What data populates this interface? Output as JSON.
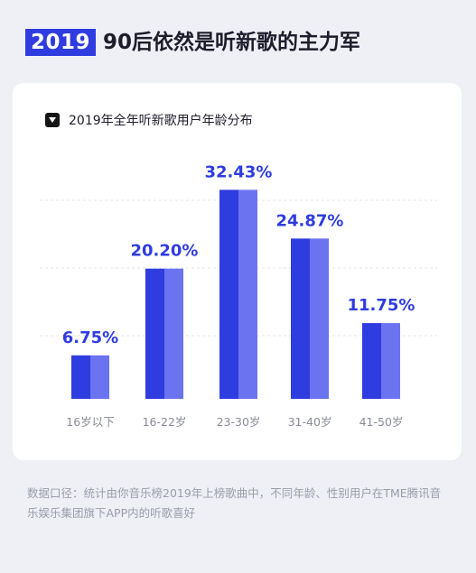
{
  "header": {
    "year": "2019",
    "headline": "90后依然是听新歌的主力军"
  },
  "colors": {
    "accent": "#2f3ce0",
    "bar_light": "#6b73f0",
    "value_label": "#2f3ce0",
    "tick_label": "#8a8c99",
    "grid": "#e4e6ee"
  },
  "chart_data": {
    "type": "bar",
    "title": "2019年全年听新歌用户年龄分布",
    "categories": [
      "16岁以下",
      "16-22岁",
      "23-30岁",
      "31-40岁",
      "41-50岁"
    ],
    "values": [
      6.75,
      20.2,
      32.43,
      24.87,
      11.75
    ],
    "value_labels": [
      "6.75%",
      "20.20%",
      "32.43%",
      "24.87%",
      "11.75%"
    ],
    "ylim": [
      0,
      35
    ],
    "grid": true,
    "legend_icon": "chevron-down-icon"
  },
  "footnote": "数据口径：统计由你音乐榜2019年上榜歌曲中，不同年龄、性别用户在TME腾讯音乐娱乐集团旗下APP内的听歌喜好"
}
